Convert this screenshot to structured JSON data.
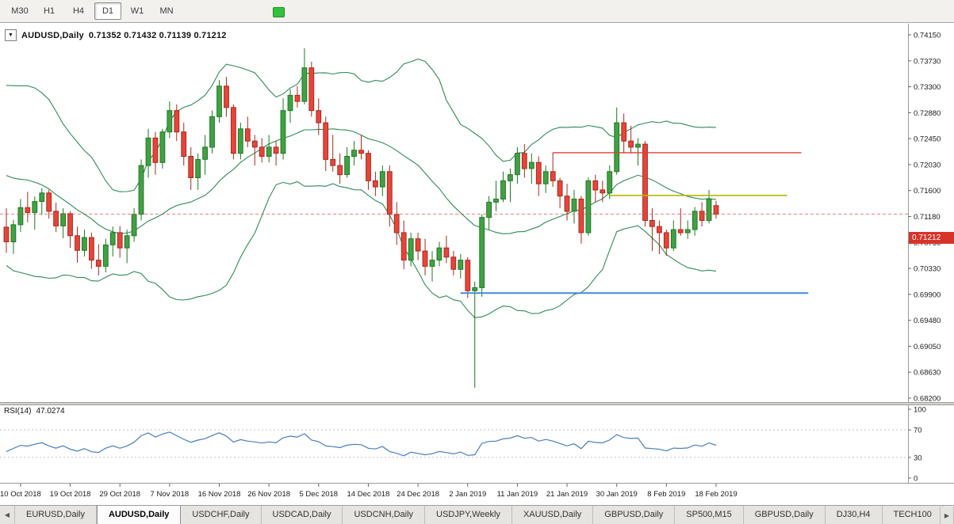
{
  "toolbar": {
    "timeframes": [
      {
        "label": "M30",
        "active": false
      },
      {
        "label": "H1",
        "active": false
      },
      {
        "label": "H4",
        "active": false
      },
      {
        "label": "D1",
        "active": true
      },
      {
        "label": "W1",
        "active": false
      },
      {
        "label": "MN",
        "active": false
      }
    ],
    "indicator_color": "#35c03c"
  },
  "chart_header": {
    "symbol_label": "AUDUSD,Daily",
    "ohlc": "0.71352 0.71432 0.71139 0.71212",
    "dropdown_glyph": "▼"
  },
  "price_badge": "0.71212",
  "rsi_panel": {
    "label": "RSI(14)",
    "value": "47.0274"
  },
  "bottom_bar": {
    "scroll_left_glyph": "◀",
    "scroll_right_glyph": "▶",
    "tabs": [
      {
        "label": "EURUSD,Daily",
        "active": false
      },
      {
        "label": "AUDUSD,Daily",
        "active": true
      },
      {
        "label": "USDCHF,Daily",
        "active": false
      },
      {
        "label": "USDCAD,Daily",
        "active": false
      },
      {
        "label": "USDCNH,Daily",
        "active": false
      },
      {
        "label": "USDJPY,Weekly",
        "active": false
      },
      {
        "label": "XAUUSD,Daily",
        "active": false
      },
      {
        "label": "GBPUSD,Daily",
        "active": false
      },
      {
        "label": "SP500,M15",
        "active": false
      },
      {
        "label": "GBPUSD,Daily",
        "active": false
      },
      {
        "label": "DJ30,H4",
        "active": false
      },
      {
        "label": "TECH100",
        "active": false
      }
    ]
  },
  "chart_data": {
    "type": "candlestick",
    "symbol": "AUDUSD",
    "timeframe": "Daily",
    "current_bar": {
      "open": 0.71352,
      "high": 0.71432,
      "low": 0.71139,
      "close": 0.71212
    },
    "bid": 0.71212,
    "y_axis": {
      "min": 0.682,
      "max": 0.7415,
      "labels": [
        "0.74150",
        "0.73730",
        "0.73300",
        "0.72880",
        "0.72450",
        "0.72030",
        "0.71600",
        "0.71180",
        "0.70750",
        "0.70330",
        "0.69900",
        "0.69480",
        "0.69050",
        "0.68630",
        "0.68200"
      ]
    },
    "x_labels": [
      {
        "i": 2,
        "t": "10 Oct 2018"
      },
      {
        "i": 9,
        "t": "19 Oct 2018"
      },
      {
        "i": 16,
        "t": "29 Oct 2018"
      },
      {
        "i": 23,
        "t": "7 Nov 2018"
      },
      {
        "i": 30,
        "t": "16 Nov 2018"
      },
      {
        "i": 37,
        "t": "26 Nov 2018"
      },
      {
        "i": 44,
        "t": "5 Dec 2018"
      },
      {
        "i": 51,
        "t": "14 Dec 2018"
      },
      {
        "i": 58,
        "t": "24 Dec 2018"
      },
      {
        "i": 65,
        "t": "2 Jan 2019"
      },
      {
        "i": 72,
        "t": "11 Jan 2019"
      },
      {
        "i": 79,
        "t": "21 Jan 2019"
      },
      {
        "i": 86,
        "t": "30 Jan 2019"
      },
      {
        "i": 93,
        "t": "8 Feb 2019"
      },
      {
        "i": 100,
        "t": "18 Feb 2019"
      }
    ],
    "warmup_closes": [
      0.7192,
      0.7167,
      0.7152,
      0.721,
      0.7247,
      0.7256,
      0.7289,
      0.7281,
      0.7251,
      0.7238,
      0.7221,
      0.7206,
      0.7227,
      0.7211,
      0.7181,
      0.7121,
      0.7074,
      0.7048,
      0.7046
    ],
    "candles": [
      [
        0.71,
        0.7131,
        0.7058,
        0.7076
      ],
      [
        0.7076,
        0.7112,
        0.7056,
        0.7104
      ],
      [
        0.7104,
        0.7146,
        0.7092,
        0.7132
      ],
      [
        0.7132,
        0.7158,
        0.7108,
        0.7124
      ],
      [
        0.7124,
        0.715,
        0.7096,
        0.7142
      ],
      [
        0.7142,
        0.7164,
        0.712,
        0.7156
      ],
      [
        0.7156,
        0.7161,
        0.7114,
        0.7126
      ],
      [
        0.7126,
        0.714,
        0.7092,
        0.7102
      ],
      [
        0.7102,
        0.7131,
        0.7082,
        0.7122
      ],
      [
        0.7122,
        0.7126,
        0.7066,
        0.7086
      ],
      [
        0.7086,
        0.7101,
        0.7042,
        0.7062
      ],
      [
        0.7062,
        0.7096,
        0.7052,
        0.7083
      ],
      [
        0.7083,
        0.7091,
        0.7032,
        0.7046
      ],
      [
        0.7046,
        0.7072,
        0.7021,
        0.7036
      ],
      [
        0.7036,
        0.7081,
        0.7026,
        0.7071
      ],
      [
        0.7071,
        0.7101,
        0.7052,
        0.7091
      ],
      [
        0.7091,
        0.7102,
        0.705,
        0.7066
      ],
      [
        0.7066,
        0.7096,
        0.7041,
        0.7086
      ],
      [
        0.7086,
        0.7131,
        0.7076,
        0.7121
      ],
      [
        0.7121,
        0.7211,
        0.7111,
        0.7201
      ],
      [
        0.7201,
        0.7261,
        0.7181,
        0.7246
      ],
      [
        0.7246,
        0.7256,
        0.7186,
        0.7206
      ],
      [
        0.7206,
        0.7261,
        0.7196,
        0.7256
      ],
      [
        0.7256,
        0.7306,
        0.7246,
        0.7291
      ],
      [
        0.7291,
        0.7301,
        0.7241,
        0.7256
      ],
      [
        0.7256,
        0.7271,
        0.7201,
        0.7216
      ],
      [
        0.7216,
        0.7231,
        0.7161,
        0.7181
      ],
      [
        0.7181,
        0.7221,
        0.7161,
        0.7211
      ],
      [
        0.7211,
        0.7251,
        0.7186,
        0.7231
      ],
      [
        0.7231,
        0.7291,
        0.7221,
        0.7281
      ],
      [
        0.7281,
        0.7341,
        0.7271,
        0.7331
      ],
      [
        0.7331,
        0.7346,
        0.7281,
        0.7296
      ],
      [
        0.7296,
        0.7301,
        0.7211,
        0.7221
      ],
      [
        0.7221,
        0.7271,
        0.7211,
        0.7261
      ],
      [
        0.7261,
        0.7281,
        0.7231,
        0.7241
      ],
      [
        0.7241,
        0.7251,
        0.7201,
        0.7231
      ],
      [
        0.7231,
        0.7246,
        0.7206,
        0.7216
      ],
      [
        0.7216,
        0.7251,
        0.7206,
        0.7231
      ],
      [
        0.7231,
        0.7241,
        0.7201,
        0.7221
      ],
      [
        0.7221,
        0.7311,
        0.7211,
        0.7291
      ],
      [
        0.7291,
        0.7326,
        0.7271,
        0.7316
      ],
      [
        0.7316,
        0.7331,
        0.7296,
        0.7306
      ],
      [
        0.7306,
        0.7393,
        0.7301,
        0.7361
      ],
      [
        0.7361,
        0.7371,
        0.7281,
        0.7291
      ],
      [
        0.7291,
        0.7311,
        0.7251,
        0.7271
      ],
      [
        0.7271,
        0.7281,
        0.7192,
        0.7211
      ],
      [
        0.7211,
        0.7251,
        0.7191,
        0.7201
      ],
      [
        0.7201,
        0.7221,
        0.7171,
        0.7186
      ],
      [
        0.7186,
        0.7231,
        0.7181,
        0.7216
      ],
      [
        0.7216,
        0.7241,
        0.7201,
        0.7226
      ],
      [
        0.7226,
        0.7251,
        0.7211,
        0.7221
      ],
      [
        0.7221,
        0.7226,
        0.7161,
        0.7176
      ],
      [
        0.7176,
        0.7191,
        0.7151,
        0.7166
      ],
      [
        0.7166,
        0.7201,
        0.7151,
        0.7191
      ],
      [
        0.7191,
        0.7201,
        0.7101,
        0.7121
      ],
      [
        0.7121,
        0.7141,
        0.7071,
        0.7091
      ],
      [
        0.7091,
        0.7111,
        0.7031,
        0.7046
      ],
      [
        0.7046,
        0.7091,
        0.7036,
        0.7081
      ],
      [
        0.7081,
        0.7091,
        0.7046,
        0.7061
      ],
      [
        0.7061,
        0.7081,
        0.7021,
        0.7036
      ],
      [
        0.7036,
        0.7061,
        0.7011,
        0.7046
      ],
      [
        0.7046,
        0.7076,
        0.7036,
        0.7066
      ],
      [
        0.7066,
        0.7086,
        0.7041,
        0.7051
      ],
      [
        0.7051,
        0.7061,
        0.7021,
        0.7031
      ],
      [
        0.7031,
        0.7056,
        0.7016,
        0.7046
      ],
      [
        0.7046,
        0.7051,
        0.6984,
        0.6996
      ],
      [
        0.6996,
        0.7011,
        0.6837,
        0.7001
      ],
      [
        0.7001,
        0.7121,
        0.6986,
        0.7116
      ],
      [
        0.7116,
        0.7151,
        0.7096,
        0.7141
      ],
      [
        0.7141,
        0.7176,
        0.7126,
        0.7146
      ],
      [
        0.7146,
        0.7191,
        0.7141,
        0.7176
      ],
      [
        0.7176,
        0.7196,
        0.7141,
        0.7186
      ],
      [
        0.7186,
        0.7231,
        0.7171,
        0.7221
      ],
      [
        0.7221,
        0.7236,
        0.7181,
        0.7196
      ],
      [
        0.7196,
        0.7221,
        0.7171,
        0.7206
      ],
      [
        0.7206,
        0.7216,
        0.7151,
        0.7171
      ],
      [
        0.7171,
        0.7201,
        0.7156,
        0.7191
      ],
      [
        0.7191,
        0.7222,
        0.7166,
        0.7176
      ],
      [
        0.7176,
        0.7181,
        0.7131,
        0.7151
      ],
      [
        0.7151,
        0.7171,
        0.7111,
        0.7126
      ],
      [
        0.7126,
        0.7161,
        0.7106,
        0.7146
      ],
      [
        0.7146,
        0.7151,
        0.7073,
        0.7091
      ],
      [
        0.7091,
        0.7181,
        0.7086,
        0.7176
      ],
      [
        0.7176,
        0.7186,
        0.7141,
        0.7161
      ],
      [
        0.7161,
        0.7176,
        0.7141,
        0.7156
      ],
      [
        0.7156,
        0.7201,
        0.7146,
        0.7191
      ],
      [
        0.7191,
        0.7296,
        0.7186,
        0.7271
      ],
      [
        0.7271,
        0.7286,
        0.7221,
        0.7241
      ],
      [
        0.7241,
        0.7266,
        0.7221,
        0.7231
      ],
      [
        0.7231,
        0.7246,
        0.7201,
        0.7236
      ],
      [
        0.7236,
        0.7241,
        0.7101,
        0.7111
      ],
      [
        0.7111,
        0.7131,
        0.7061,
        0.7101
      ],
      [
        0.7101,
        0.7111,
        0.7056,
        0.7091
      ],
      [
        0.7091,
        0.7096,
        0.7053,
        0.7066
      ],
      [
        0.7066,
        0.7111,
        0.7061,
        0.7096
      ],
      [
        0.7096,
        0.7131,
        0.7086,
        0.7091
      ],
      [
        0.7091,
        0.7111,
        0.7081,
        0.7096
      ],
      [
        0.7096,
        0.7133,
        0.7086,
        0.7126
      ],
      [
        0.7126,
        0.7141,
        0.7101,
        0.7111
      ],
      [
        0.7111,
        0.7161,
        0.7106,
        0.7146
      ],
      [
        0.71352,
        0.71432,
        0.71139,
        0.71212
      ]
    ],
    "indicators": {
      "bollinger": {
        "period": 20,
        "deviation": 2,
        "color": "#2e8b57"
      },
      "rsi": {
        "period": 14,
        "color": "#4a7ebb",
        "current": "47.0274",
        "axis_labels": [
          "100",
          "70",
          "30",
          "0"
        ],
        "axis_values": [
          100,
          70,
          30,
          0
        ],
        "levels": [
          70,
          30
        ],
        "level_color": "#c0c0c0"
      }
    },
    "hlines": [
      {
        "price": 0.7222,
        "from_index": 77,
        "to_index": 112,
        "color": "#e03c32",
        "width": 1.4
      },
      {
        "price": 0.7152,
        "from_index": 85,
        "to_index": 110,
        "color": "#b5b800",
        "width": 1.6
      },
      {
        "price": 0.6992,
        "from_index": 64,
        "to_index": 113,
        "color": "#3e8ede",
        "width": 2
      }
    ],
    "colors": {
      "up": "#43a047",
      "up_border": "#1b7a1f",
      "down": "#e7453a",
      "down_border": "#a8281e",
      "bid_line": "#e03c32",
      "badge_bg": "#d8332a",
      "axis_line": "#9a9a9a",
      "grid": "#c8c8c8"
    }
  }
}
